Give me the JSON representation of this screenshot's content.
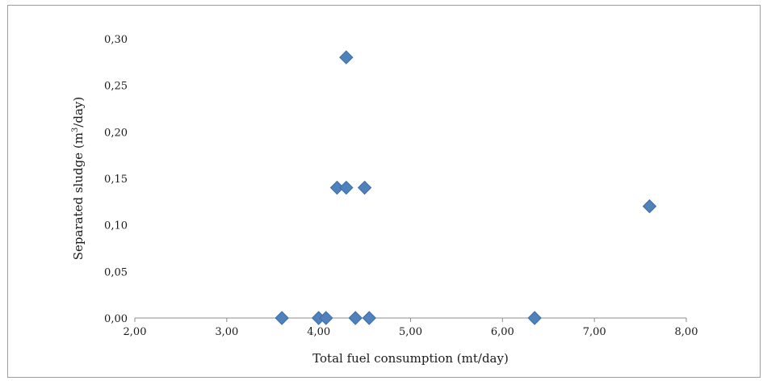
{
  "chart_data": {
    "type": "scatter",
    "title": "",
    "xlabel": "Total fuel consumption (mt/day)",
    "ylabel_main": "Separated sludge (m",
    "ylabel_sup": "3",
    "ylabel_tail": "/day)",
    "xlim": [
      2.0,
      8.0
    ],
    "ylim": [
      0.0,
      0.3
    ],
    "x_ticks": [
      2.0,
      3.0,
      4.0,
      5.0,
      6.0,
      7.0,
      8.0
    ],
    "y_ticks": [
      0.0,
      0.05,
      0.1,
      0.15,
      0.2,
      0.25,
      0.3
    ],
    "x_tick_labels": [
      "2,00",
      "3,00",
      "4,00",
      "5,00",
      "6,00",
      "7,00",
      "8,00"
    ],
    "y_tick_labels": [
      "0,00",
      "0,05",
      "0,10",
      "0,15",
      "0,20",
      "0,25",
      "0,30"
    ],
    "grid": false,
    "legend": "none",
    "marker_color": "#4f81bd",
    "marker_edge_color": "#3a6ea5",
    "points": [
      {
        "x": 3.6,
        "y": 0.0
      },
      {
        "x": 4.0,
        "y": 0.0
      },
      {
        "x": 4.08,
        "y": 0.0
      },
      {
        "x": 4.4,
        "y": 0.0
      },
      {
        "x": 4.55,
        "y": 0.0
      },
      {
        "x": 6.35,
        "y": 0.0
      },
      {
        "x": 4.2,
        "y": 0.14
      },
      {
        "x": 4.3,
        "y": 0.14
      },
      {
        "x": 4.5,
        "y": 0.14
      },
      {
        "x": 4.3,
        "y": 0.28
      },
      {
        "x": 7.6,
        "y": 0.12
      }
    ]
  }
}
